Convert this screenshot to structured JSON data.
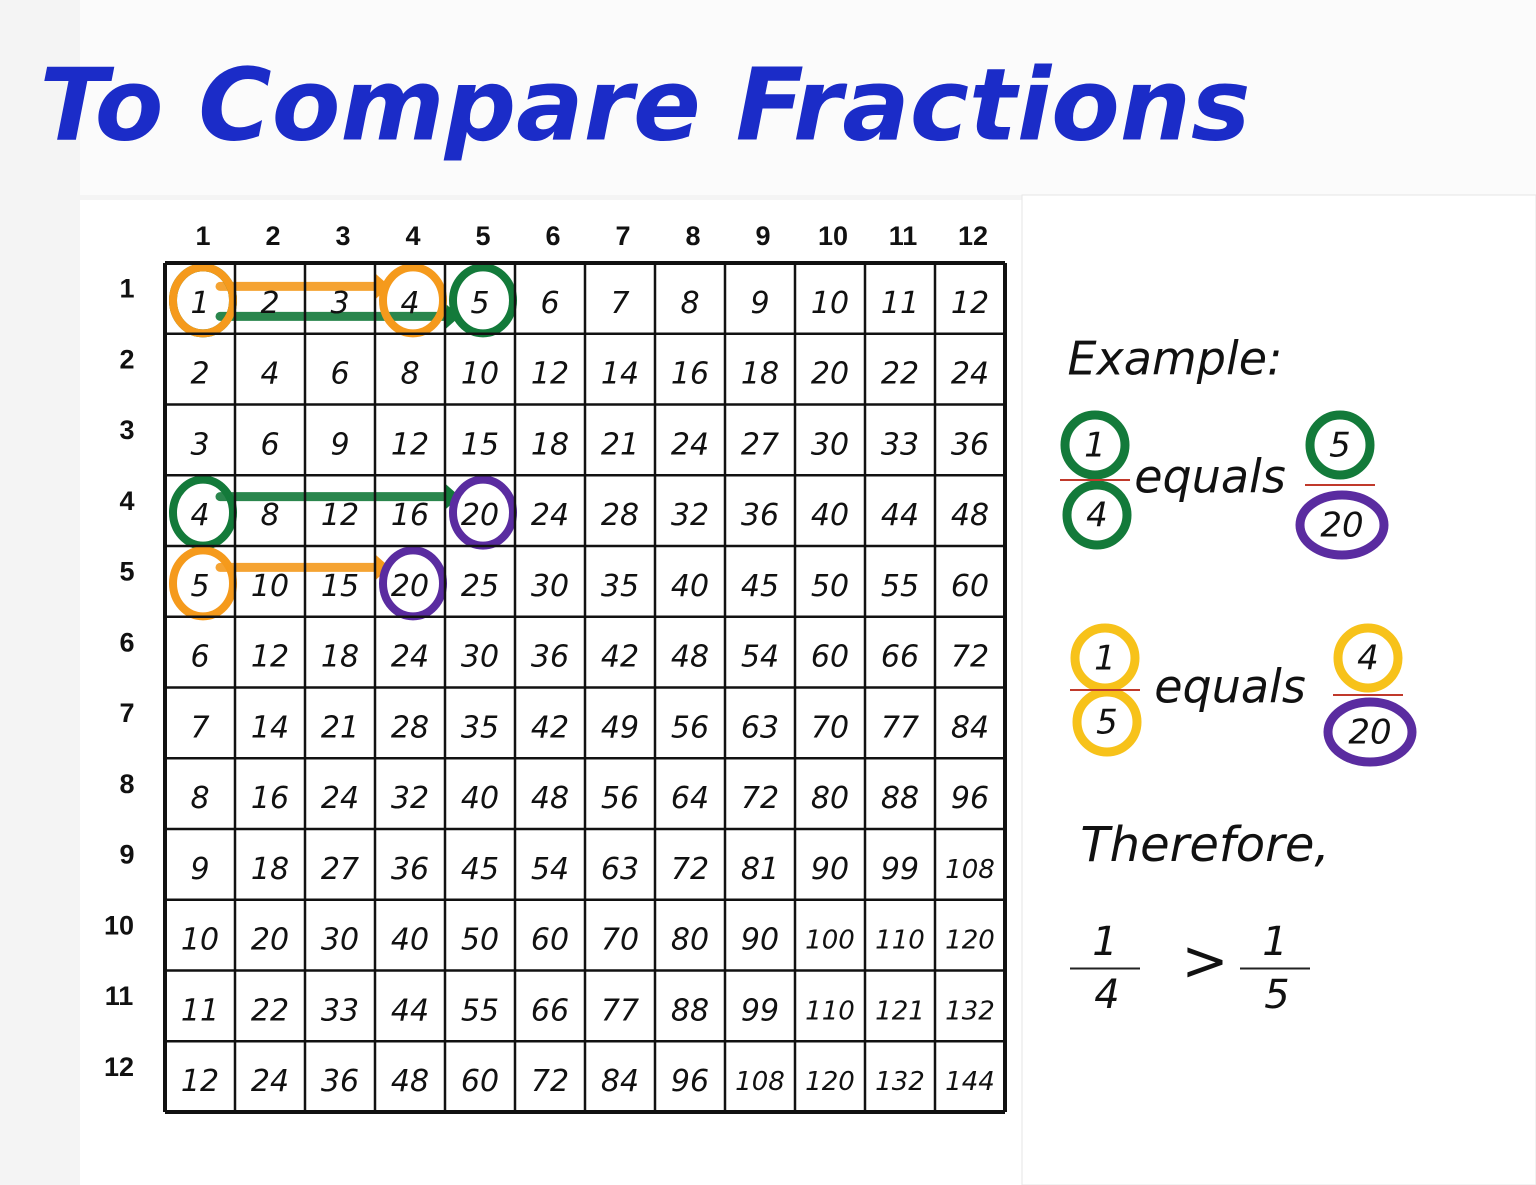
{
  "title": "To Compare Fractions",
  "column_headers": [
    1,
    2,
    3,
    4,
    5,
    6,
    7,
    8,
    9,
    10,
    11,
    12
  ],
  "row_headers": [
    1,
    2,
    3,
    4,
    5,
    6,
    7,
    8,
    9,
    10,
    11,
    12
  ],
  "table": {
    "rows": [
      [
        1,
        2,
        3,
        4,
        5,
        6,
        7,
        8,
        9,
        10,
        11,
        12
      ],
      [
        2,
        4,
        6,
        8,
        10,
        12,
        14,
        16,
        18,
        20,
        22,
        24
      ],
      [
        3,
        6,
        9,
        12,
        15,
        18,
        21,
        24,
        27,
        30,
        33,
        36
      ],
      [
        4,
        8,
        12,
        16,
        20,
        24,
        28,
        32,
        36,
        40,
        44,
        48
      ],
      [
        5,
        10,
        15,
        20,
        25,
        30,
        35,
        40,
        45,
        50,
        55,
        60
      ],
      [
        6,
        12,
        18,
        24,
        30,
        36,
        42,
        48,
        54,
        60,
        66,
        72
      ],
      [
        7,
        14,
        21,
        28,
        35,
        42,
        49,
        56,
        63,
        70,
        77,
        84
      ],
      [
        8,
        16,
        24,
        32,
        40,
        48,
        56,
        64,
        72,
        80,
        88,
        96
      ],
      [
        9,
        18,
        27,
        36,
        45,
        54,
        63,
        72,
        81,
        90,
        99,
        108
      ],
      [
        10,
        20,
        30,
        40,
        50,
        60,
        70,
        80,
        90,
        100,
        110,
        120
      ],
      [
        11,
        22,
        33,
        44,
        55,
        66,
        77,
        88,
        99,
        110,
        121,
        132
      ],
      [
        12,
        24,
        36,
        48,
        60,
        72,
        84,
        96,
        108,
        120,
        132,
        144
      ]
    ]
  },
  "example": {
    "heading": "Example:",
    "equations": [
      {
        "left": {
          "numerator": 1,
          "denominator": 4
        },
        "relation": "equals",
        "right": {
          "numerator": 5,
          "denominator": 20
        }
      },
      {
        "left": {
          "numerator": 1,
          "denominator": 5
        },
        "relation": "equals",
        "right": {
          "numerator": 4,
          "denominator": 20
        }
      }
    ],
    "conclusion": {
      "heading": "Therefore,",
      "left": {
        "numerator": 1,
        "denominator": 4
      },
      "relation": ">",
      "right": {
        "numerator": 1,
        "denominator": 5
      }
    }
  }
}
